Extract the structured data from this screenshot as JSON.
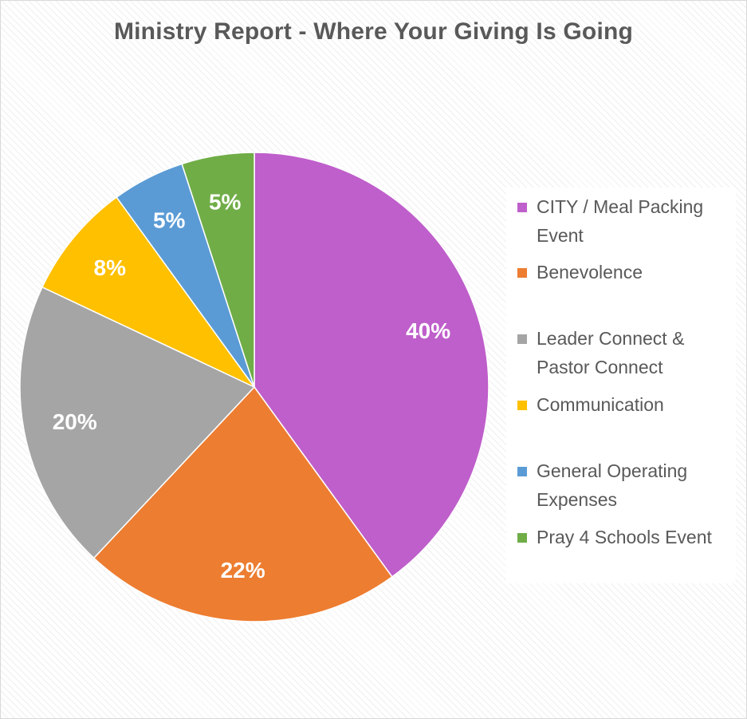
{
  "chart_data": {
    "type": "pie",
    "title": "Ministry Report - Where Your Giving Is Going",
    "categories": [
      "CITY / Meal Packing Event",
      "Benevolence",
      "Leader Connect & Pastor Connect",
      "Communication",
      "General Operating Expenses",
      "Pray 4 Schools Event"
    ],
    "values": [
      40,
      22,
      20,
      8,
      5,
      5
    ],
    "data_labels": [
      "40%",
      "22%",
      "20%",
      "8%",
      "5%",
      "5%"
    ],
    "colors": [
      "#bf5fcb",
      "#ed7d31",
      "#a5a5a5",
      "#ffc000",
      "#5b9bd5",
      "#70ad47"
    ],
    "legend": "right"
  }
}
